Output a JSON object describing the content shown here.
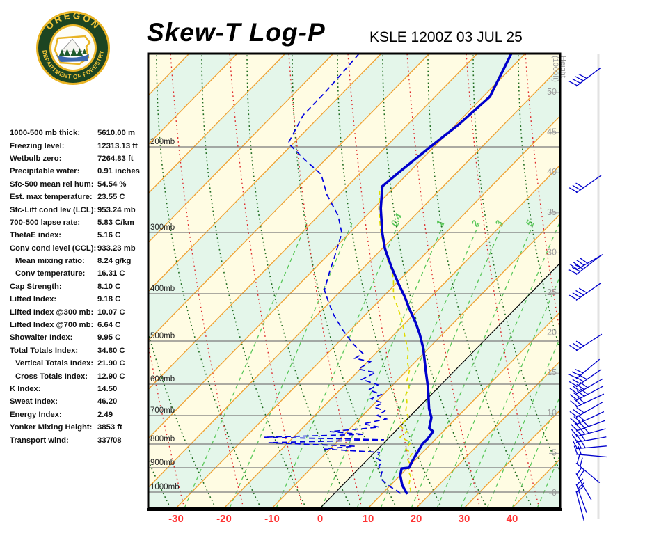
{
  "header": {
    "logo_alt": "Oregon Department of Forestry seal",
    "logo_text_top": "OREGON",
    "logo_text_bottom": "DEPARTMENT OF FORESTRY",
    "title": "Skew-T Log-P",
    "station_line": "KSLE 1200Z 03 JUL 25"
  },
  "indices": {
    "rows": [
      {
        "label": "1000-500 mb thick:",
        "value": "5610.00 m",
        "indent": false
      },
      {
        "label": "Freezing level:",
        "value": "12313.13 ft",
        "indent": false
      },
      {
        "label": "Wetbulb zero:",
        "value": "7264.83 ft",
        "indent": false
      },
      {
        "label": "Precipitable water:",
        "value": "0.91 inches",
        "indent": false
      },
      {
        "label": "Sfc-500 mean rel hum:",
        "value": "54.54 %",
        "indent": false
      },
      {
        "label": "Est. max temperature:",
        "value": "23.55 C",
        "indent": false
      },
      {
        "label": "Sfc-Lift cond lev (LCL):",
        "value": "953.24 mb",
        "indent": false
      },
      {
        "label": "700-500 lapse rate:",
        "value": "5.83 C/km",
        "indent": false
      },
      {
        "label": "ThetaE index:",
        "value": "5.16 C",
        "indent": false
      },
      {
        "label": "Conv cond level (CCL):",
        "value": "933.23 mb",
        "indent": false
      },
      {
        "label": "Mean mixing ratio:",
        "value": "8.24 g/kg",
        "indent": true
      },
      {
        "label": "Conv temperature:",
        "value": "16.31 C",
        "indent": true
      },
      {
        "label": "Cap Strength:",
        "value": "8.10 C",
        "indent": false
      },
      {
        "label": "Lifted Index:",
        "value": "9.18 C",
        "indent": false
      },
      {
        "label": "Lifted Index @300 mb:",
        "value": "10.07 C",
        "indent": false
      },
      {
        "label": "Lifted Index @700 mb:",
        "value": "6.64 C",
        "indent": false
      },
      {
        "label": "Showalter Index:",
        "value": "9.95 C",
        "indent": false
      },
      {
        "label": "Total Totals Index:",
        "value": "34.80 C",
        "indent": false
      },
      {
        "label": "Vertical Totals Index:",
        "value": "21.90 C",
        "indent": true
      },
      {
        "label": "Cross Totals Index:",
        "value": "12.90 C",
        "indent": true
      },
      {
        "label": "K Index:",
        "value": "14.50",
        "indent": false
      },
      {
        "label": "Sweat Index:",
        "value": "46.20",
        "indent": false
      },
      {
        "label": "Energy Index:",
        "value": "2.49",
        "indent": false
      },
      {
        "label": "Yonker Mixing Height:",
        "value": "3853 ft",
        "indent": false
      },
      {
        "label": "Transport wind:",
        "value": "337/08",
        "indent": false
      }
    ]
  },
  "chart_data": {
    "type": "line",
    "title": "Skew-T Log-P",
    "station": "KSLE",
    "valid_time": "1200Z 03 JUL 25",
    "x_axis": {
      "units": "C",
      "ticks": [
        -30,
        -20,
        -10,
        0,
        10,
        20,
        30,
        40
      ],
      "tick_color": "#ff3333"
    },
    "pressure_levels_mb": [
      200,
      300,
      400,
      500,
      600,
      700,
      800,
      900,
      1000
    ],
    "height_axis_title_line1": "Height",
    "height_axis_title_line2": "(1000ft)",
    "height_labels_kft": [
      50,
      45,
      40,
      35,
      30,
      25,
      20,
      15,
      10,
      5,
      0
    ],
    "mixing_ratio_lines": [
      {
        "label": "",
        "xb": 265
      },
      {
        "label": "0.4",
        "xb": 397
      },
      {
        "label": "1",
        "xb": 462
      },
      {
        "label": "2",
        "xb": 513
      },
      {
        "label": "3",
        "xb": 547
      },
      {
        "label": "5",
        "xb": 591
      },
      {
        "label": "",
        "xb": 628
      },
      {
        "label": "",
        "xb": 662
      },
      {
        "label": "",
        "xb": 700
      },
      {
        "label": "",
        "xb": 736
      },
      {
        "label": "",
        "xb": 772
      },
      {
        "label": "",
        "xb": 330
      }
    ],
    "temperature_trace": [
      [
        150,
        -52.9
      ],
      [
        173,
        -48.6
      ],
      [
        188,
        -49.4
      ],
      [
        201,
        -50.8
      ],
      [
        232,
        -52.2
      ],
      [
        246,
        -52.7
      ],
      [
        272,
        -48.5
      ],
      [
        300,
        -43.3
      ],
      [
        326,
        -39.5
      ],
      [
        356,
        -34.4
      ],
      [
        384,
        -29.4
      ],
      [
        407,
        -25.4
      ],
      [
        431,
        -22.2
      ],
      [
        460,
        -18.1
      ],
      [
        485,
        -14.8
      ],
      [
        516,
        -11.2
      ],
      [
        569,
        -6.0
      ],
      [
        611,
        -2.1
      ],
      [
        678,
        2.4
      ],
      [
        707,
        4.7
      ],
      [
        744,
        6.4
      ],
      [
        756,
        7.9
      ],
      [
        785,
        8.3
      ],
      [
        798,
        8.2
      ],
      [
        835,
        8.9
      ],
      [
        871,
        9.6
      ],
      [
        900,
        10.3
      ],
      [
        903,
        8.9
      ],
      [
        931,
        10.0
      ],
      [
        971,
        12.4
      ],
      [
        1009,
        15.3
      ]
    ],
    "dewpoint_trace": [
      [
        150,
        -84.6
      ],
      [
        170,
        -83.8
      ],
      [
        183,
        -83.7
      ],
      [
        198,
        -81.1
      ],
      [
        215,
        -74.3
      ],
      [
        232,
        -67.9
      ],
      [
        256,
        -62.5
      ],
      [
        280,
        -56.0
      ],
      [
        301,
        -51.6
      ],
      [
        338,
        -48.4
      ],
      [
        367,
        -46.0
      ],
      [
        394,
        -43.6
      ],
      [
        422,
        -39.7
      ],
      [
        446,
        -36.4
      ],
      [
        478,
        -31.4
      ],
      [
        505,
        -26.9
      ],
      [
        529,
        -22.6
      ],
      [
        540,
        -23.3
      ],
      [
        548,
        -19.4
      ],
      [
        565,
        -20.4
      ],
      [
        573,
        -16.1
      ],
      [
        589,
        -17.6
      ],
      [
        602,
        -13.1
      ],
      [
        618,
        -14.0
      ],
      [
        633,
        -10.4
      ],
      [
        647,
        -11.7
      ],
      [
        660,
        -8.4
      ],
      [
        673,
        -9.4
      ],
      [
        685,
        -6.3
      ],
      [
        700,
        -7.0
      ],
      [
        712,
        -4.4
      ],
      [
        729,
        -8.2
      ],
      [
        741,
        -4.2
      ],
      [
        756,
        -13.6
      ],
      [
        766,
        -5.9
      ],
      [
        776,
        -26.2
      ],
      [
        785,
        -0.6
      ],
      [
        795,
        -24.1
      ],
      [
        809,
        -5.4
      ],
      [
        821,
        -11.3
      ],
      [
        835,
        1.0
      ],
      [
        859,
        1.5
      ],
      [
        874,
        3.4
      ],
      [
        894,
        3.7
      ],
      [
        917,
        5.5
      ],
      [
        943,
        6.4
      ],
      [
        963,
        8.5
      ],
      [
        980,
        10.5
      ],
      [
        994,
        12.4
      ],
      [
        1009,
        14.1
      ]
    ],
    "wetbulb_trace": [
      [
        151,
        -52.8
      ],
      [
        174,
        -48.7
      ],
      [
        189,
        -49.6
      ],
      [
        202,
        -51.0
      ],
      [
        233,
        -52.4
      ],
      [
        248,
        -52.9
      ],
      [
        272,
        -48.9
      ],
      [
        299,
        -43.8
      ],
      [
        326,
        -39.6
      ],
      [
        349,
        -35.9
      ],
      [
        363,
        -33.4
      ],
      [
        378,
        -31.2
      ],
      [
        404,
        -28.1
      ],
      [
        431,
        -24.5
      ],
      [
        460,
        -20.8
      ],
      [
        490,
        -17.4
      ],
      [
        524,
        -13.6
      ],
      [
        548,
        -11.7
      ],
      [
        569,
        -9.4
      ],
      [
        592,
        -7.9
      ],
      [
        611,
        -6.0
      ],
      [
        633,
        -5.3
      ],
      [
        656,
        -3.6
      ],
      [
        683,
        -2.1
      ],
      [
        707,
        -0.1
      ],
      [
        737,
        -0.1
      ],
      [
        756,
        2.5
      ],
      [
        776,
        2.2
      ],
      [
        794,
        5.5
      ],
      [
        821,
        5.8
      ],
      [
        841,
        8.1
      ],
      [
        865,
        8.3
      ],
      [
        888,
        10.0
      ],
      [
        911,
        10.6
      ],
      [
        934,
        12.3
      ],
      [
        966,
        13.6
      ],
      [
        994,
        15.3
      ],
      [
        1009,
        15.7
      ]
    ],
    "wind_barbs": [
      {
        "h_kft": 50.7,
        "dir": 37,
        "ticks": 4
      },
      {
        "h_kft": 37.4,
        "dir": 35,
        "ticks": 3
      },
      {
        "h_kft": 27.8,
        "dir": 30,
        "ticks": 4
      },
      {
        "h_kft": 27.2,
        "dir": 38,
        "ticks": 3
      },
      {
        "h_kft": 24.0,
        "dir": 35,
        "ticks": 4
      },
      {
        "h_kft": 17.7,
        "dir": 33,
        "ticks": 3
      },
      {
        "h_kft": 14.2,
        "dir": 40,
        "ticks": 3
      },
      {
        "h_kft": 13.2,
        "dir": 35,
        "ticks": 4
      },
      {
        "h_kft": 12.3,
        "dir": 30,
        "ticks": 4
      },
      {
        "h_kft": 11.5,
        "dir": 28,
        "ticks": 4
      },
      {
        "h_kft": 10.7,
        "dir": 25,
        "ticks": 3
      },
      {
        "h_kft": 9.4,
        "dir": 30,
        "ticks": 3
      },
      {
        "h_kft": 8.5,
        "dir": 25,
        "ticks": 3
      },
      {
        "h_kft": 7.7,
        "dir": 20,
        "ticks": 4
      },
      {
        "h_kft": 7.0,
        "dir": 15,
        "ticks": 4
      },
      {
        "h_kft": 6.3,
        "dir": 10,
        "ticks": 3
      },
      {
        "h_kft": 5.5,
        "dir": 5,
        "ticks": 3
      },
      {
        "h_kft": 4.8,
        "dir": -5,
        "ticks": 2
      },
      {
        "h_kft": 3.7,
        "dir": -40,
        "ticks": 2
      },
      {
        "h_kft": 2.4,
        "dir": -60,
        "ticks": 2
      },
      {
        "h_kft": 1.1,
        "dir": -70,
        "ticks": 2
      },
      {
        "h_kft": 0.2,
        "dir": -75,
        "ticks": 1
      }
    ],
    "colors": {
      "band_yellow": "#FFFCE3",
      "band_green": "#E4F6EA",
      "isotherm": "#F0A030",
      "zero_isotherm": "#000000",
      "dry_adiabat": "#1E6B1E",
      "moist_adiabat": "#DE2A2A",
      "mixing_ratio": "#5BC85B",
      "pressure_line": "#7A7A7A",
      "pressure_label": "#222222",
      "height_label": "#999999",
      "x_tick": "#FF3333",
      "temperature": "#0000CC",
      "dewpoint": "#0000E0",
      "wetbulb": "#E0DC00",
      "barb": "#0000CC",
      "staff": "#E2E2E2"
    }
  }
}
